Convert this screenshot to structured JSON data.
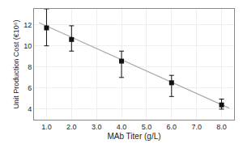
{
  "chart_data": {
    "type": "scatter",
    "xlabel": "MAb Titer (g/L)",
    "ylabel": "Unit Production Cost (€10⁶)",
    "series": [
      {
        "type": "line",
        "color": "#aaaaaa",
        "line_style": "solid",
        "x": [
          0.7,
          8.3
        ],
        "values": [
          12.2,
          4.1
        ]
      },
      {
        "type": "scatter",
        "marker": "square",
        "color": "#111111",
        "x": [
          1.0,
          2.0,
          4.0,
          6.0,
          8.0
        ],
        "values": [
          11.7,
          10.6,
          8.55,
          6.5,
          4.4
        ],
        "error_upper": [
          1.8,
          1.3,
          0.95,
          0.7,
          0.55
        ],
        "error_lower": [
          1.7,
          1.1,
          1.55,
          1.3,
          0.4
        ]
      }
    ],
    "xlim": [
      0.5,
      8.5
    ],
    "ylim": [
      3.0,
      13.5
    ],
    "xticks": [
      {
        "value": 1.0,
        "label": "1.0"
      },
      {
        "value": 2.0,
        "label": "2.0"
      },
      {
        "value": 3.0,
        "label": "3.0"
      },
      {
        "value": 4.0,
        "label": "4.0"
      },
      {
        "value": 5.0,
        "label": "5.0"
      },
      {
        "value": 6.0,
        "label": "6.0"
      },
      {
        "value": 7.0,
        "label": "7.0"
      },
      {
        "value": 8.0,
        "label": "8.0"
      }
    ],
    "yticks": [
      4,
      6,
      8,
      10,
      12
    ],
    "grid": true
  }
}
